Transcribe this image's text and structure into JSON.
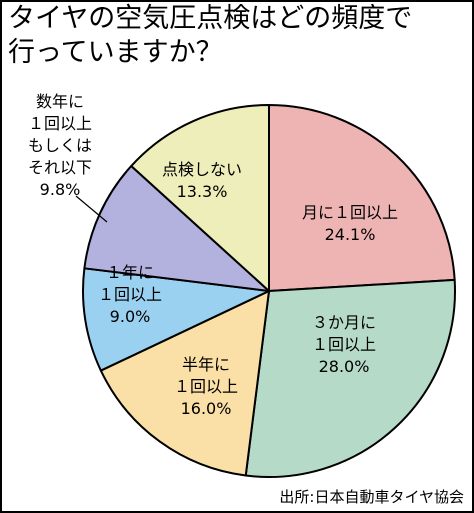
{
  "title": {
    "line1": "タイヤの空気圧点検はどの頻度で",
    "line2": "行っていますか？"
  },
  "source": "出所:日本自動車タイヤ協会",
  "chart_data": {
    "type": "pie",
    "title": "タイヤの空気圧点検はどの頻度で行っていますか？",
    "start": "12 o'clock",
    "direction": "clockwise",
    "slices": [
      {
        "label_lines": [
          "月に１回以上"
        ],
        "value": 24.1,
        "value_label": "24.1%",
        "color": "#eeb4b4"
      },
      {
        "label_lines": [
          "３か月に",
          "１回以上"
        ],
        "value": 28.0,
        "value_label": "28.0%",
        "color": "#b6dac8"
      },
      {
        "label_lines": [
          "半年に",
          "１回以上"
        ],
        "value": 16.0,
        "value_label": "16.0%",
        "color": "#fadfa6"
      },
      {
        "label_lines": [
          "１年に",
          "１回以上"
        ],
        "value": 9.0,
        "value_label": "9.0%",
        "color": "#9bd1f0"
      },
      {
        "label_lines": [
          "数年に",
          "１回以上",
          "もしくは",
          "それ以下"
        ],
        "value": 9.8,
        "value_label": "9.8%",
        "color": "#b3b1dd"
      },
      {
        "label_lines": [
          "点検しない"
        ],
        "value": 13.3,
        "value_label": "13.3%",
        "color": "#eeeeba"
      }
    ]
  }
}
